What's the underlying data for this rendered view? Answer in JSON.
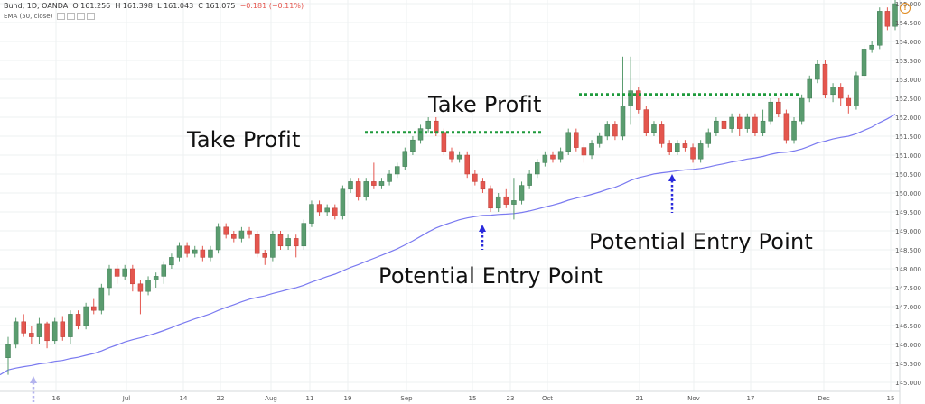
{
  "header": {
    "symbol": "Bund, 1D, OANDA",
    "o": "O 161.256",
    "h": "H 161.398",
    "l": "L 161.043",
    "c": "C 161.075",
    "chg": "−0.181 (−0.11%)",
    "indicator": "EMA (50, close)"
  },
  "annotations": {
    "take_profit_1": "Take Profit",
    "take_profit_2": "Take Profit",
    "entry_1": "Potential Entry Point",
    "entry_2": "Potential Entry Point"
  },
  "colors": {
    "up": "#5a9c6f",
    "down": "#e4564e",
    "ema": "#7a7af0",
    "dotted_line": "#1e9a3c",
    "arrow": "#2a2adc",
    "arrow_faded": "#b4b4ee",
    "grid": "#eef0f2",
    "axis_text": "#555555"
  },
  "chart_data": {
    "type": "candlestick",
    "y_ticks": [
      "155.000",
      "154.500",
      "154.000",
      "153.500",
      "153.000",
      "152.500",
      "152.000",
      "151.500",
      "151.000",
      "150.500",
      "150.000",
      "149.500",
      "149.000",
      "148.500",
      "148.000",
      "147.500",
      "147.000",
      "146.500",
      "146.000",
      "145.500",
      "145.000"
    ],
    "x_ticks": [
      "16",
      "Jul",
      "14",
      "22",
      "Aug",
      "11",
      "19",
      "Sep",
      "15",
      "23",
      "Oct",
      "21",
      "Nov",
      "17",
      "Dec",
      "15"
    ],
    "ylim": [
      144.75,
      155.25
    ],
    "ema_period": 50,
    "candles": [
      [
        145.65,
        146.0,
        145.2,
        146.2
      ],
      [
        146.0,
        146.6,
        145.9,
        146.7
      ],
      [
        146.6,
        146.3,
        146.2,
        146.8
      ],
      [
        146.3,
        146.2,
        146.0,
        146.5
      ],
      [
        146.2,
        146.55,
        146.0,
        146.7
      ],
      [
        146.55,
        146.1,
        145.9,
        146.6
      ],
      [
        146.1,
        146.6,
        146.0,
        146.7
      ],
      [
        146.6,
        146.2,
        146.1,
        146.75
      ],
      [
        146.2,
        146.8,
        146.0,
        146.9
      ],
      [
        146.8,
        146.5,
        146.4,
        146.9
      ],
      [
        146.5,
        147.0,
        146.4,
        147.1
      ],
      [
        147.0,
        146.9,
        146.8,
        147.2
      ],
      [
        146.9,
        147.5,
        146.8,
        147.6
      ],
      [
        147.5,
        148.0,
        147.3,
        148.1
      ],
      [
        148.0,
        147.8,
        147.6,
        148.1
      ],
      [
        147.8,
        148.0,
        147.7,
        148.1
      ],
      [
        148.0,
        147.6,
        147.4,
        148.1
      ],
      [
        147.6,
        147.4,
        146.8,
        147.7
      ],
      [
        147.4,
        147.7,
        147.3,
        147.8
      ],
      [
        147.7,
        147.8,
        147.5,
        147.9
      ],
      [
        147.8,
        148.1,
        147.6,
        148.2
      ],
      [
        148.1,
        148.3,
        148.0,
        148.4
      ],
      [
        148.3,
        148.6,
        148.2,
        148.7
      ],
      [
        148.6,
        148.4,
        148.3,
        148.7
      ],
      [
        148.4,
        148.5,
        148.3,
        148.6
      ],
      [
        148.5,
        148.3,
        148.2,
        148.6
      ],
      [
        148.3,
        148.5,
        148.2,
        148.6
      ],
      [
        148.5,
        149.1,
        148.4,
        149.2
      ],
      [
        149.1,
        148.9,
        148.8,
        149.2
      ],
      [
        148.9,
        148.8,
        148.7,
        149.0
      ],
      [
        148.8,
        149.0,
        148.7,
        149.1
      ],
      [
        149.0,
        148.9,
        148.8,
        149.1
      ],
      [
        148.9,
        148.4,
        148.3,
        149.0
      ],
      [
        148.4,
        148.3,
        148.1,
        148.5
      ],
      [
        148.3,
        148.9,
        148.2,
        149.0
      ],
      [
        148.9,
        148.6,
        148.5,
        149.0
      ],
      [
        148.6,
        148.8,
        148.5,
        148.9
      ],
      [
        148.8,
        148.6,
        148.3,
        148.9
      ],
      [
        148.6,
        149.2,
        148.5,
        149.3
      ],
      [
        149.2,
        149.7,
        149.1,
        149.8
      ],
      [
        149.7,
        149.5,
        149.4,
        149.8
      ],
      [
        149.5,
        149.6,
        149.4,
        149.7
      ],
      [
        149.6,
        149.4,
        149.3,
        149.7
      ],
      [
        149.4,
        150.1,
        149.3,
        150.2
      ],
      [
        150.1,
        150.3,
        150.0,
        150.4
      ],
      [
        150.3,
        149.9,
        149.8,
        150.4
      ],
      [
        149.9,
        150.3,
        149.8,
        150.4
      ],
      [
        150.3,
        150.2,
        150.1,
        150.8
      ],
      [
        150.2,
        150.3,
        150.1,
        150.4
      ],
      [
        150.3,
        150.5,
        150.2,
        150.6
      ],
      [
        150.5,
        150.7,
        150.4,
        150.8
      ],
      [
        150.7,
        151.1,
        150.6,
        151.2
      ],
      [
        151.1,
        151.4,
        151.0,
        151.5
      ],
      [
        151.4,
        151.7,
        151.3,
        151.8
      ],
      [
        151.7,
        151.9,
        151.6,
        152.0
      ],
      [
        151.9,
        151.6,
        151.5,
        152.0
      ],
      [
        151.6,
        151.1,
        151.0,
        151.7
      ],
      [
        151.1,
        150.9,
        150.8,
        151.2
      ],
      [
        150.9,
        151.0,
        150.8,
        151.1
      ],
      [
        151.0,
        150.5,
        150.4,
        151.1
      ],
      [
        150.5,
        150.3,
        150.2,
        150.6
      ],
      [
        150.3,
        150.1,
        150.0,
        150.4
      ],
      [
        150.1,
        149.6,
        149.5,
        150.2
      ],
      [
        149.6,
        149.9,
        149.5,
        150.0
      ],
      [
        149.9,
        149.7,
        149.6,
        150.1
      ],
      [
        149.7,
        149.8,
        149.3,
        150.4
      ],
      [
        149.8,
        150.2,
        149.7,
        150.3
      ],
      [
        150.2,
        150.5,
        150.1,
        150.6
      ],
      [
        150.5,
        150.8,
        150.4,
        150.9
      ],
      [
        150.8,
        151.0,
        150.7,
        151.1
      ],
      [
        151.0,
        150.9,
        150.8,
        151.1
      ],
      [
        150.9,
        151.1,
        150.8,
        151.2
      ],
      [
        151.1,
        151.6,
        151.0,
        151.7
      ],
      [
        151.6,
        151.2,
        151.1,
        151.7
      ],
      [
        151.2,
        151.0,
        150.8,
        151.3
      ],
      [
        151.0,
        151.3,
        150.9,
        151.4
      ],
      [
        151.3,
        151.5,
        151.2,
        151.6
      ],
      [
        151.5,
        151.8,
        151.4,
        151.9
      ],
      [
        151.8,
        151.5,
        151.4,
        151.9
      ],
      [
        151.5,
        152.3,
        151.4,
        153.6
      ],
      [
        152.3,
        152.7,
        151.8,
        153.6
      ],
      [
        152.7,
        152.2,
        152.1,
        152.8
      ],
      [
        152.2,
        151.6,
        151.5,
        152.3
      ],
      [
        151.6,
        151.8,
        151.5,
        151.9
      ],
      [
        151.8,
        151.3,
        151.2,
        151.9
      ],
      [
        151.3,
        151.1,
        151.0,
        151.4
      ],
      [
        151.1,
        151.3,
        151.0,
        151.4
      ],
      [
        151.3,
        151.2,
        151.1,
        151.4
      ],
      [
        151.2,
        150.9,
        150.8,
        151.3
      ],
      [
        150.9,
        151.3,
        150.8,
        151.4
      ],
      [
        151.3,
        151.6,
        151.2,
        151.7
      ],
      [
        151.6,
        151.9,
        151.5,
        152.0
      ],
      [
        151.9,
        151.7,
        151.6,
        152.0
      ],
      [
        151.7,
        152.0,
        151.6,
        152.1
      ],
      [
        152.0,
        151.7,
        151.5,
        152.1
      ],
      [
        151.7,
        152.0,
        151.6,
        152.1
      ],
      [
        152.0,
        151.6,
        151.5,
        152.1
      ],
      [
        151.6,
        151.9,
        151.5,
        152.2
      ],
      [
        151.9,
        152.4,
        151.8,
        152.5
      ],
      [
        152.4,
        152.1,
        152.0,
        152.5
      ],
      [
        152.1,
        151.4,
        151.3,
        152.2
      ],
      [
        151.4,
        151.9,
        151.3,
        152.0
      ],
      [
        151.9,
        152.5,
        151.8,
        152.6
      ],
      [
        152.5,
        153.0,
        152.4,
        153.1
      ],
      [
        153.0,
        153.4,
        152.9,
        153.5
      ],
      [
        153.4,
        152.6,
        152.5,
        153.5
      ],
      [
        152.6,
        152.8,
        152.4,
        152.9
      ],
      [
        152.8,
        152.5,
        152.3,
        152.9
      ],
      [
        152.5,
        152.3,
        152.1,
        152.6
      ],
      [
        152.3,
        153.1,
        152.2,
        153.2
      ],
      [
        153.1,
        153.8,
        153.0,
        153.9
      ],
      [
        153.8,
        153.9,
        153.7,
        154.0
      ],
      [
        153.9,
        154.8,
        153.8,
        154.9
      ],
      [
        154.8,
        154.4,
        154.3,
        154.9
      ],
      [
        154.4,
        155.0,
        154.3,
        155.1
      ]
    ]
  }
}
